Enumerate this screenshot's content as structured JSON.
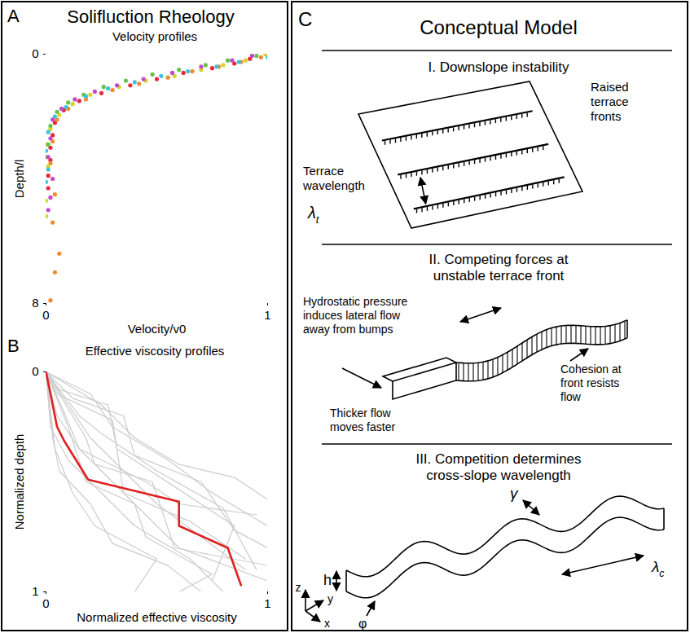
{
  "heading": "Solifluction Rheology",
  "chart_data": [
    {
      "panel": "A",
      "type": "scatter",
      "title": "Velocity profiles",
      "x_label": "Velocity/v0",
      "y_label": "Depth/l",
      "xlim": [
        0,
        1
      ],
      "ylim": [
        8,
        0
      ],
      "xticks": [
        0,
        1
      ],
      "yticks": [
        0,
        8
      ],
      "series": [
        {
          "color": "#e8283c",
          "x": [
            1,
            0.92,
            0.85,
            0.75,
            0.62,
            0.5,
            0.38,
            0.25,
            0.15,
            0.08,
            0.04,
            0.03,
            0.02,
            0.02,
            0.01,
            0.01
          ],
          "y": [
            0.05,
            0.15,
            0.3,
            0.45,
            0.6,
            0.8,
            1.0,
            1.25,
            1.5,
            1.8,
            2.2,
            2.6,
            3.0,
            3.4,
            3.9,
            4.3
          ]
        },
        {
          "color": "#f28a2e",
          "x": [
            0.97,
            0.88,
            0.78,
            0.66,
            0.55,
            0.42,
            0.3,
            0.18,
            0.1,
            0.05,
            0.03,
            0.02,
            0.04,
            0.03,
            0.06,
            0.04,
            0.02
          ],
          "y": [
            0.1,
            0.25,
            0.4,
            0.55,
            0.75,
            0.95,
            1.15,
            1.45,
            1.75,
            2.1,
            2.8,
            3.5,
            4.5,
            5.4,
            6.4,
            7.0,
            7.9
          ]
        },
        {
          "color": "#d9d42a",
          "x": [
            0.99,
            0.9,
            0.8,
            0.7,
            0.58,
            0.45,
            0.33,
            0.2,
            0.12,
            0.06,
            0.02,
            0.0,
            0.01,
            0.0,
            0.0
          ],
          "y": [
            0.0,
            0.2,
            0.35,
            0.5,
            0.7,
            0.85,
            1.05,
            1.3,
            1.6,
            1.95,
            2.4,
            2.9,
            3.6,
            4.7,
            5.2
          ]
        },
        {
          "color": "#66c24a",
          "x": [
            0.95,
            0.82,
            0.72,
            0.6,
            0.48,
            0.36,
            0.26,
            0.17,
            0.1,
            0.05,
            0.02,
            0.01,
            0.0
          ],
          "y": [
            0.05,
            0.2,
            0.35,
            0.5,
            0.65,
            0.85,
            1.05,
            1.3,
            1.55,
            1.85,
            2.3,
            2.9,
            3.3
          ]
        },
        {
          "color": "#3cc4d6",
          "x": [
            1.0,
            0.87,
            0.77,
            0.64,
            0.52,
            0.4,
            0.28,
            0.18,
            0.09,
            0.04,
            0.01,
            0.0,
            0.01,
            0.0
          ],
          "y": [
            0.1,
            0.25,
            0.4,
            0.55,
            0.7,
            0.9,
            1.1,
            1.35,
            1.7,
            2.0,
            2.5,
            3.1,
            3.7,
            4.1
          ]
        },
        {
          "color": "#c04bc8",
          "x": [
            0.93,
            0.84,
            0.7,
            0.57,
            0.44,
            0.32,
            0.22,
            0.13,
            0.07,
            0.03,
            0.02,
            0.01,
            0.03,
            0.02,
            0.01
          ],
          "y": [
            0.05,
            0.2,
            0.4,
            0.6,
            0.8,
            1.0,
            1.2,
            1.45,
            1.75,
            2.1,
            2.7,
            3.3,
            4.0,
            4.6,
            5.0
          ]
        }
      ]
    },
    {
      "panel": "B",
      "type": "line",
      "title": "Effective viscosity profiles",
      "x_label": "Normalized effective viscosity",
      "y_label": "Normalized depth",
      "xlim": [
        0,
        1
      ],
      "ylim": [
        1,
        0
      ],
      "xticks": [
        0,
        1
      ],
      "yticks": [
        0,
        1
      ],
      "series": [
        {
          "color": "#cccccc",
          "x": [
            0,
            0.1,
            0.2,
            0.35,
            0.5,
            0.7,
            0.9
          ],
          "y": [
            0,
            0.15,
            0.3,
            0.45,
            0.6,
            0.75,
            0.9
          ]
        },
        {
          "color": "#cccccc",
          "x": [
            0,
            0.05,
            0.15,
            0.3,
            0.45,
            0.6,
            1.0
          ],
          "y": [
            0,
            0.2,
            0.35,
            0.5,
            0.65,
            0.8,
            0.95
          ]
        },
        {
          "color": "#cccccc",
          "x": [
            0,
            0.2,
            0.3,
            0.55,
            0.75,
            1.0
          ],
          "y": [
            0,
            0.1,
            0.25,
            0.4,
            0.55,
            0.7
          ]
        },
        {
          "color": "#cccccc",
          "x": [
            0,
            0.02,
            0.1,
            0.25,
            0.4,
            0.65,
            0.8
          ],
          "y": [
            0,
            0.25,
            0.4,
            0.55,
            0.7,
            0.85,
            1.0
          ]
        },
        {
          "color": "#cccccc",
          "x": [
            0,
            0.08,
            0.15,
            0.45,
            0.6,
            0.95
          ],
          "y": [
            0,
            0.18,
            0.35,
            0.5,
            0.6,
            0.65
          ]
        },
        {
          "color": "#cccccc",
          "x": [
            0,
            0.12,
            0.35,
            0.4,
            0.7,
            0.85,
            1.0
          ],
          "y": [
            0,
            0.12,
            0.2,
            0.38,
            0.5,
            0.72,
            0.8
          ]
        },
        {
          "color": "#cccccc",
          "x": [
            0,
            0.03,
            0.06,
            0.2,
            0.3,
            0.55,
            0.7
          ],
          "y": [
            0,
            0.3,
            0.45,
            0.6,
            0.78,
            0.88,
            1.0
          ]
        },
        {
          "color": "#cccccc",
          "x": [
            0,
            0.15,
            0.25,
            0.5,
            0.8,
            0.95
          ],
          "y": [
            0,
            0.2,
            0.28,
            0.45,
            0.62,
            0.9
          ]
        },
        {
          "color": "#cccccc",
          "x": [
            0,
            0.05,
            0.3,
            0.35,
            0.65,
            0.9
          ],
          "y": [
            0,
            0.1,
            0.22,
            0.55,
            0.68,
            0.85
          ]
        },
        {
          "color": "#cccccc",
          "x": [
            0,
            0.1,
            0.18,
            0.4,
            0.45,
            0.75,
            0.6
          ],
          "y": [
            0,
            0.25,
            0.5,
            0.6,
            0.75,
            0.92,
            1.0
          ]
        },
        {
          "color": "#cccccc",
          "x": [
            0,
            0.25,
            0.4,
            0.6,
            0.85,
            1.0
          ],
          "y": [
            0,
            0.15,
            0.3,
            0.42,
            0.48,
            0.58
          ]
        },
        {
          "color": "#cccccc",
          "x": [
            0,
            0.04,
            0.12,
            0.22,
            0.5,
            0.4
          ],
          "y": [
            0,
            0.35,
            0.55,
            0.7,
            0.85,
            1.0
          ]
        },
        {
          "color": "#cccccc",
          "x": [
            0,
            0.18,
            0.22,
            0.48,
            0.58,
            1.0
          ],
          "y": [
            0,
            0.3,
            0.42,
            0.5,
            0.8,
            0.88
          ]
        },
        {
          "color": "#cccccc",
          "x": [
            0,
            0.06,
            0.28,
            0.32,
            0.85,
            0.75
          ],
          "y": [
            0,
            0.08,
            0.15,
            0.35,
            0.7,
            0.95
          ]
        },
        {
          "color": "#e02020",
          "x": [
            0,
            0.05,
            0.08,
            0.19,
            0.6,
            0.6,
            0.82,
            0.88
          ],
          "y": [
            0,
            0.25,
            0.31,
            0.49,
            0.59,
            0.7,
            0.8,
            0.97
          ]
        }
      ]
    }
  ],
  "diagram": {
    "panel": "C",
    "title": "Conceptual Model",
    "sections": [
      {
        "heading": "I. Downslope instability",
        "labels": {
          "fronts": "Raised terrace fronts",
          "wavelength": "Terrace wavelength",
          "symbol": "λt"
        }
      },
      {
        "heading": "II. Competing forces at unstable terrace front",
        "labels": {
          "pressure": "Hydrostatic pressure induces lateral flow away from bumps",
          "cohesion": "Cohesion at front resists flow",
          "thickness": "Thicker flow moves faster"
        }
      },
      {
        "heading": "III. Competition determines cross-slope wavelength",
        "labels": {
          "height": "h",
          "amplitude": "γ",
          "wavelength": "λc",
          "angle": "φ"
        },
        "axes": [
          "z",
          "y",
          "x"
        ]
      }
    ]
  }
}
